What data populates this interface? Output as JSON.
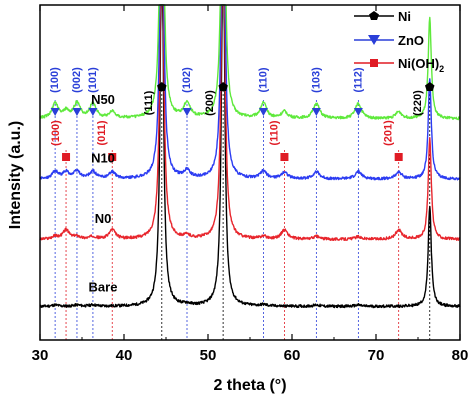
{
  "chart_data": {
    "type": "line",
    "xlabel": "2 theta (°)",
    "ylabel": "Intensity (a.u.)",
    "xlim": [
      30,
      80
    ],
    "xticks": [
      "30",
      "40",
      "50",
      "60",
      "70",
      "80"
    ],
    "series": [
      {
        "name": "Bare",
        "color": "#000000",
        "baseline": 0.1
      },
      {
        "name": "N0",
        "color": "#e8262d",
        "baseline": 0.3
      },
      {
        "name": "N10",
        "color": "#2c3cf2",
        "baseline": 0.48
      },
      {
        "name": "N50",
        "color": "#5fe93c",
        "baseline": 0.66
      }
    ],
    "ni_peaks": [
      {
        "label": "(111)",
        "x": 44.5
      },
      {
        "label": "(200)",
        "x": 51.8
      },
      {
        "label": "(220)",
        "x": 76.4
      }
    ],
    "zno_peaks": [
      {
        "label": "(100)",
        "x": 31.8
      },
      {
        "label": "(002)",
        "x": 34.4
      },
      {
        "label": "(101)",
        "x": 36.3
      },
      {
        "label": "(102)",
        "x": 47.5
      },
      {
        "label": "(110)",
        "x": 56.6
      },
      {
        "label": "(103)",
        "x": 62.9
      },
      {
        "label": "(112)",
        "x": 67.9
      }
    ],
    "nioh_peaks": [
      {
        "label": "(100)",
        "x": 33.1
      },
      {
        "label": "(011)",
        "x": 38.6
      },
      {
        "label": "(110)",
        "x": 59.1
      },
      {
        "label": "(201)",
        "x": 72.7
      }
    ],
    "legend": {
      "position": "top-right",
      "entries": [
        {
          "label": "Ni",
          "marker": "pentagon",
          "color": "#000000"
        },
        {
          "label": "ZnO",
          "marker": "triangle-down",
          "color": "#2a3fd8"
        },
        {
          "label": "Ni(OH)",
          "sub": "2",
          "marker": "square",
          "color": "#e01b24"
        }
      ]
    },
    "colors": {
      "zno": "#2a3fd8",
      "nioh": "#e01b24",
      "ni": "#000000"
    }
  }
}
